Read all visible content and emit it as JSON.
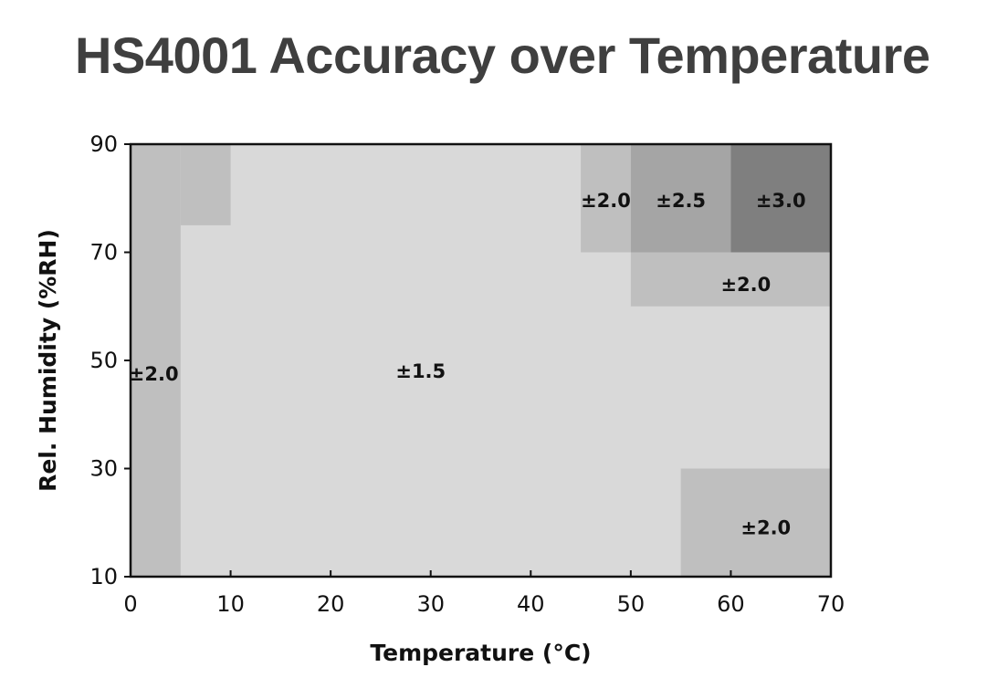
{
  "chart_data": {
    "type": "heatmap",
    "title": "HS4001 Accuracy over Temperature",
    "xlabel": "Temperature (°C)",
    "ylabel": "Rel. Humidity (%RH)",
    "xlim": [
      0,
      70
    ],
    "ylim": [
      10,
      90
    ],
    "xticks": [
      0,
      10,
      20,
      30,
      40,
      50,
      60,
      70
    ],
    "yticks": [
      10,
      30,
      50,
      70,
      90
    ],
    "grid": false,
    "regions": [
      {
        "label": "±1.5",
        "value": 1.5,
        "x": [
          0,
          70
        ],
        "y": [
          10,
          90
        ],
        "color": "#d9d9d9",
        "label_at": [
          29,
          48
        ]
      },
      {
        "label": "±2.0",
        "value": 2.0,
        "x": [
          0,
          5
        ],
        "y": [
          10,
          90
        ],
        "color": "#bfbfbf",
        "label_at": [
          2.3,
          47.5
        ]
      },
      {
        "label": "",
        "value": 2.0,
        "x": [
          5,
          10
        ],
        "y": [
          75,
          90
        ],
        "color": "#bfbfbf"
      },
      {
        "label": "±2.0",
        "value": 2.0,
        "x": [
          45,
          50
        ],
        "y": [
          70,
          90
        ],
        "color": "#bfbfbf",
        "label_at": [
          47.5,
          79.5
        ]
      },
      {
        "label": "±2.5",
        "value": 2.5,
        "x": [
          50,
          60
        ],
        "y": [
          70,
          90
        ],
        "color": "#a5a5a5",
        "label_at": [
          55,
          79.5
        ]
      },
      {
        "label": "±3.0",
        "value": 3.0,
        "x": [
          60,
          70
        ],
        "y": [
          70,
          90
        ],
        "color": "#7f7f7f",
        "label_at": [
          65,
          79.5
        ]
      },
      {
        "label": "±2.0",
        "value": 2.0,
        "x": [
          50,
          70
        ],
        "y": [
          60,
          70
        ],
        "color": "#bfbfbf",
        "label_at": [
          61.5,
          64
        ]
      },
      {
        "label": "±2.0",
        "value": 2.0,
        "x": [
          55,
          70
        ],
        "y": [
          10,
          30
        ],
        "color": "#bfbfbf",
        "label_at": [
          63.5,
          19
        ]
      }
    ]
  }
}
